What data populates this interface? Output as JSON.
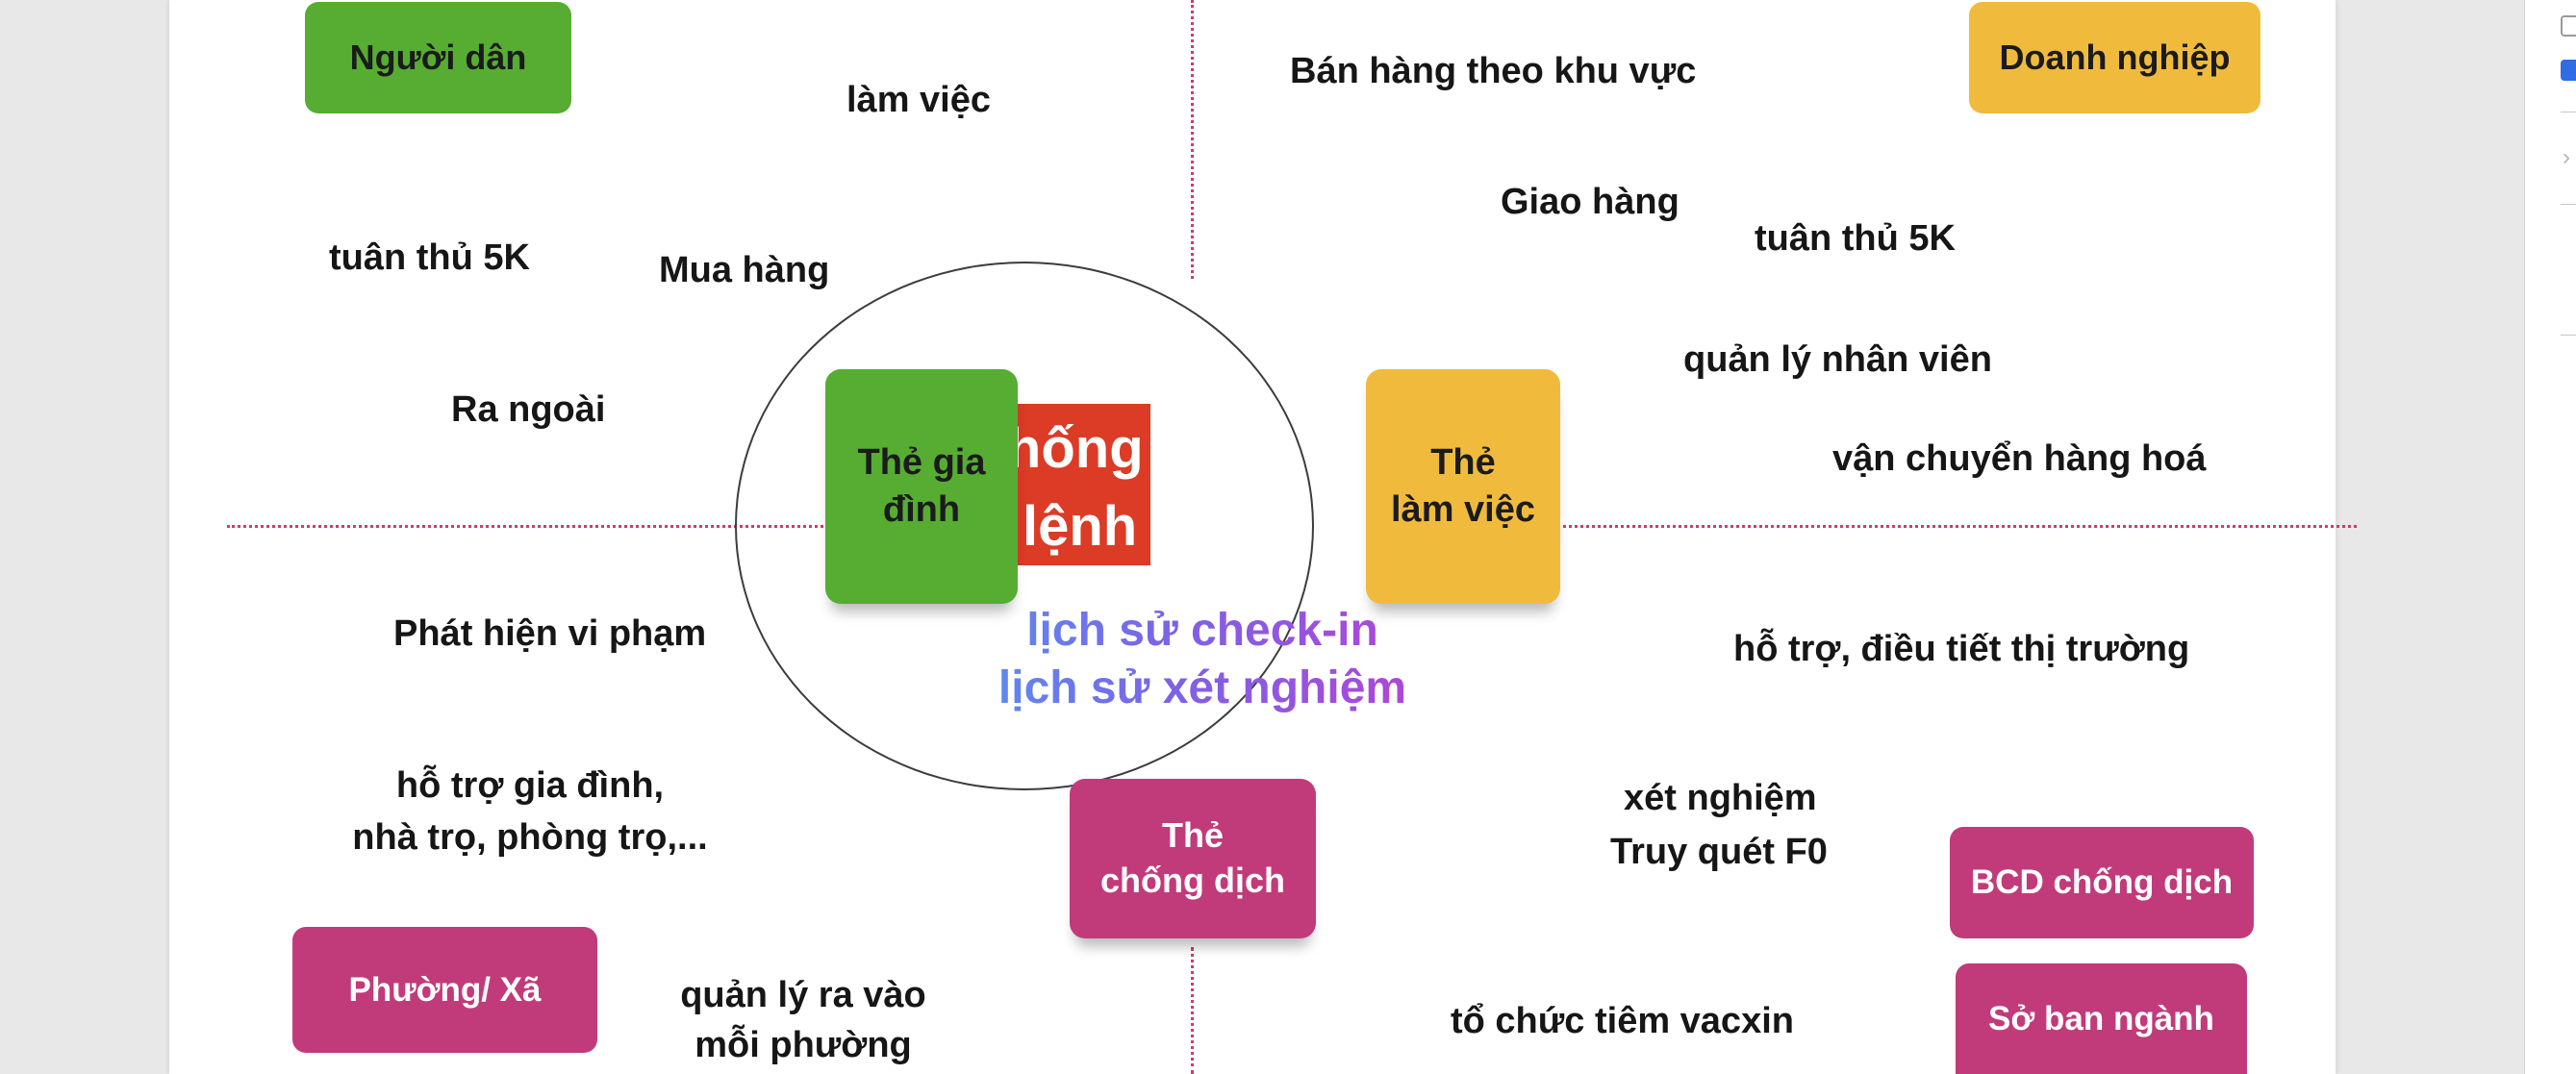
{
  "center": {
    "title_line1": "Hệ thống",
    "title_line2": "Thẻ lệnh",
    "history_line1": "lịch sử check-in",
    "history_line2": "lịch sử xét nghiệm"
  },
  "cards": {
    "family_line1": "Thẻ gia",
    "family_line2": "đình",
    "work_line1": "Thẻ",
    "work_line2": "làm việc",
    "anti_line1": "Thẻ",
    "anti_line2": "chống dịch"
  },
  "roles": {
    "citizen": "Người dân",
    "business": "Doanh nghiệp",
    "ward": "Phường/ Xã",
    "bcd": "BCD chống dịch",
    "department": "Sở ban ngành"
  },
  "labels": {
    "lam_viec": "làm việc",
    "tuan_thu_left": "tuân thủ 5K",
    "mua_hang": "Mua hàng",
    "ra_ngoai": "Ra ngoài",
    "ban_hang": "Bán hàng theo khu vực",
    "giao_hang": "Giao hàng",
    "tuan_thu_right": "tuân thủ 5K",
    "quan_ly_nv": "quản lý nhân viên",
    "van_chuyen": "vận chuyển hàng hoá",
    "phat_hien": "Phát hiện vi phạm",
    "ho_tro_line1": "hỗ trợ gia đình,",
    "ho_tro_line2": "nhà trọ, phòng trọ,...",
    "quan_ly_ra_vao_line1": "quản lý ra vào",
    "quan_ly_ra_vao_line2": "mỗi phường",
    "ho_tro_thi_truong": "hỗ trợ, điều tiết thị trường",
    "xet_nghiem": "xét nghiệm",
    "truy_quet": "Truy quét F0",
    "tiem_vacxin": "tổ chức tiêm vacxin"
  },
  "colors": {
    "green": "#56ad32",
    "yellow": "#f0bb3d",
    "magenta": "#c13b7a",
    "red": "#dc3b26",
    "divider": "#d23a6a"
  },
  "side_panel": {
    "checkbox_1_checked": false,
    "checkbox_2_checked": true,
    "icon": "chevron-right-icon"
  }
}
